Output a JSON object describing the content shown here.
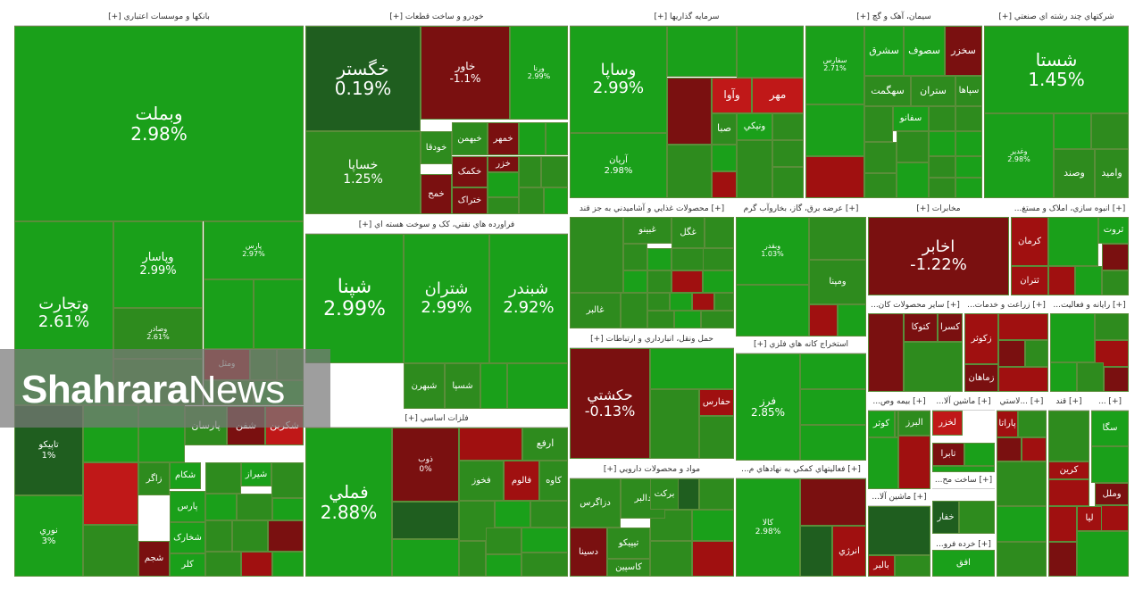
{
  "colors": {
    "up3": "#1aa01a",
    "up2": "#2e8b1e",
    "up1": "#3a7a28",
    "flat": "#1f5e1f",
    "dn1": "#7a1010",
    "dn2": "#a01010",
    "dn3": "#c01818"
  },
  "watermark": {
    "brand_bold": "Shahrara",
    "brand_light": "News"
  },
  "sectors": [
    {
      "title": "بانکها و موسسات اعتباري [+]"
    },
    {
      "title": "خودرو و ساخت قطعات [+]"
    },
    {
      "title": "سرمايه گذاريها [+]"
    },
    {
      "title": "سيمان، آهک و گچ [+]"
    },
    {
      "title": "شرکتهاي چند رشته اي صنعتي [+]"
    },
    {
      "title": "فراورده هاي نفتي، کک و سوخت هسته اي [+]"
    },
    {
      "title": "[+] محصولات غذايي و آشاميدني به جز قند"
    },
    {
      "title": "[+] بانکها و موسسات اعتباري"
    },
    {
      "title": "[+] عرضه برق، گاز، بخاروآب گرم"
    },
    {
      "title": "عرضه برق، گاز، بخار..."
    },
    {
      "title": "مخابرات [+]"
    },
    {
      "title": "[+] انبوه سازي، املاک و مستغ..."
    },
    {
      "title": "[+] ساير محصولات کان..."
    },
    {
      "title": "[+] زراعت و خدمات..."
    },
    {
      "title": "[+] رايانه و فعاليت..."
    },
    {
      "title": "فلزات اساسي [+]"
    },
    {
      "title": "حمل ونقل، انبارداري و ارتباطات [+]"
    },
    {
      "title": "استخراج کانه هاي فلزي [+]"
    },
    {
      "title": "[+] بيمه وص..."
    },
    {
      "title": "[+] ماشين آلا..."
    },
    {
      "title": "[+] ...لاستي"
    },
    {
      "title": "[+] قند"
    },
    {
      "title": "[+] ..."
    },
    {
      "title": "مواد و محصولات دارويي [+]"
    },
    {
      "title": "[+] فعاليتهاي کمکي به نهادهاي م..."
    },
    {
      "title": "[+] ماشين آلا..."
    },
    {
      "title": "[+] ساخت مح..."
    },
    {
      "title": "[+] خرده فرو..."
    }
  ],
  "tiles": [
    {
      "name": "وبملت",
      "pct": "2.98%"
    },
    {
      "name": "وتجارت",
      "pct": "2.61%"
    },
    {
      "name": "وپاسار",
      "pct": "2.99%"
    },
    {
      "name": "پارس",
      "pct": "2.97%"
    },
    {
      "name": "وصادر",
      "pct": "2.61%"
    },
    {
      "name": "ومثل",
      "pct": ""
    },
    {
      "name": "تاپيکو",
      "pct": "1%"
    },
    {
      "name": "نوري",
      "pct": "3%"
    },
    {
      "name": "پارسان",
      "pct": ""
    },
    {
      "name": "شفن",
      "pct": ""
    },
    {
      "name": "شکربن",
      "pct": ""
    },
    {
      "name": "زاگر",
      "pct": ""
    },
    {
      "name": "شکام",
      "pct": ""
    },
    {
      "name": "شيراز",
      "pct": ""
    },
    {
      "name": "پارس",
      "pct": ""
    },
    {
      "name": "شخارک",
      "pct": ""
    },
    {
      "name": "شجم",
      "pct": ""
    },
    {
      "name": "کلر",
      "pct": ""
    },
    {
      "name": "خگستر",
      "pct": "0.19%"
    },
    {
      "name": "خاور",
      "pct": "-1.1%"
    },
    {
      "name": "ورنا",
      "pct": "2.99%"
    },
    {
      "name": "خساپا",
      "pct": "1.25%"
    },
    {
      "name": "خودقا",
      "pct": ""
    },
    {
      "name": "خبهمن",
      "pct": ""
    },
    {
      "name": "خمهر",
      "pct": ""
    },
    {
      "name": "خکمک",
      "pct": ""
    },
    {
      "name": "خزر",
      "pct": ""
    },
    {
      "name": "ختراک",
      "pct": ""
    },
    {
      "name": "خمح",
      "pct": ""
    },
    {
      "name": "شپنا",
      "pct": "2.99%"
    },
    {
      "name": "شتران",
      "pct": "2.99%"
    },
    {
      "name": "شبندر",
      "pct": "2.92%"
    },
    {
      "name": "شبهرن",
      "pct": ""
    },
    {
      "name": "شسپا",
      "pct": ""
    },
    {
      "name": "فملي",
      "pct": "2.88%"
    },
    {
      "name": "ارفع",
      "pct": ""
    },
    {
      "name": "فخوز",
      "pct": ""
    },
    {
      "name": "فالوم",
      "pct": ""
    },
    {
      "name": "کاوه",
      "pct": ""
    },
    {
      "name": "ذوب",
      "pct": "0%"
    },
    {
      "name": "وساپا",
      "pct": "2.99%"
    },
    {
      "name": "آريان",
      "pct": "2.98%"
    },
    {
      "name": "وآوا",
      "pct": ""
    },
    {
      "name": "مهر",
      "pct": ""
    },
    {
      "name": "صبا",
      "pct": ""
    },
    {
      "name": "ونيکي",
      "pct": ""
    },
    {
      "name": "شستا",
      "pct": "1.45%"
    },
    {
      "name": "وغدير",
      "pct": "2.98%"
    },
    {
      "name": "وصند",
      "pct": ""
    },
    {
      "name": "واميد",
      "pct": ""
    },
    {
      "name": "سفارس",
      "pct": "2.71%"
    },
    {
      "name": "سشرق",
      "pct": ""
    },
    {
      "name": "سصوف",
      "pct": ""
    },
    {
      "name": "سخزر",
      "pct": ""
    },
    {
      "name": "سهگمت",
      "pct": ""
    },
    {
      "name": "ستران",
      "pct": ""
    },
    {
      "name": "سپاها",
      "pct": ""
    },
    {
      "name": "سفانو",
      "pct": ""
    },
    {
      "name": "غبينو",
      "pct": ""
    },
    {
      "name": "غگل",
      "pct": ""
    },
    {
      "name": "غالبر",
      "pct": ""
    },
    {
      "name": "وبقدر",
      "pct": "1.03%"
    },
    {
      "name": "ومپنا",
      "pct": ""
    },
    {
      "name": "اخابر",
      "pct": "-1.22%"
    },
    {
      "name": "کرمان",
      "pct": ""
    },
    {
      "name": "ثتران",
      "pct": ""
    },
    {
      "name": "ثروت",
      "pct": ""
    },
    {
      "name": "کتوکا",
      "pct": ""
    },
    {
      "name": "کسرا",
      "pct": ""
    },
    {
      "name": "زکوثر",
      "pct": ""
    },
    {
      "name": "زماهان",
      "pct": ""
    },
    {
      "name": "حکشتي",
      "pct": "-0.13%"
    },
    {
      "name": "حفارس",
      "pct": ""
    },
    {
      "name": "فرز",
      "pct": "2.85%"
    },
    {
      "name": "کالا",
      "pct": "2.98%"
    },
    {
      "name": "انرژي",
      "pct": ""
    },
    {
      "name": "دالبر",
      "pct": ""
    },
    {
      "name": "برکت",
      "pct": ""
    },
    {
      "name": "دزاگرس",
      "pct": ""
    },
    {
      "name": "تيپيکو",
      "pct": ""
    },
    {
      "name": "دسينا",
      "pct": ""
    },
    {
      "name": "کاسپين",
      "pct": ""
    },
    {
      "name": "کوثر",
      "pct": ""
    },
    {
      "name": "البرز",
      "pct": ""
    },
    {
      "name": "لخزر",
      "pct": ""
    },
    {
      "name": "تابرا",
      "pct": ""
    },
    {
      "name": "پاراتا",
      "pct": ""
    },
    {
      "name": "کرين",
      "pct": ""
    },
    {
      "name": "سگا",
      "pct": ""
    },
    {
      "name": "افق",
      "pct": ""
    },
    {
      "name": "بالبر",
      "pct": ""
    },
    {
      "name": "خفار",
      "pct": ""
    },
    {
      "name": "ليا",
      "pct": ""
    },
    {
      "name": "وملل",
      "pct": ""
    }
  ]
}
